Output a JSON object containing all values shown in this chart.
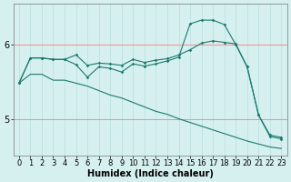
{
  "xlabel": "Humidex (Indice chaleur)",
  "bg_color": "#d6f0f0",
  "line_color": "#1a7a6e",
  "red_grid_color": "#ff8888",
  "teal_grid_color": "#b8dede",
  "x_ticks": [
    0,
    1,
    2,
    3,
    4,
    5,
    6,
    7,
    8,
    9,
    10,
    11,
    12,
    13,
    14,
    15,
    16,
    17,
    18,
    19,
    20,
    21,
    22,
    23
  ],
  "series1": [
    5.48,
    5.82,
    5.82,
    5.8,
    5.8,
    5.86,
    5.72,
    5.75,
    5.74,
    5.72,
    5.8,
    5.76,
    5.79,
    5.81,
    5.86,
    5.93,
    6.02,
    6.05,
    6.03,
    6.01,
    5.7,
    5.05,
    4.78,
    4.75
  ],
  "series2": [
    5.48,
    5.82,
    5.82,
    5.8,
    5.8,
    5.73,
    5.56,
    5.7,
    5.68,
    5.63,
    5.74,
    5.71,
    5.74,
    5.78,
    5.83,
    6.28,
    6.33,
    6.33,
    6.27,
    6.0,
    5.7,
    5.05,
    4.76,
    4.73
  ],
  "series3": [
    5.48,
    5.6,
    5.6,
    5.52,
    5.52,
    5.48,
    5.44,
    5.38,
    5.32,
    5.28,
    5.22,
    5.16,
    5.1,
    5.06,
    5.0,
    4.95,
    4.9,
    4.85,
    4.8,
    4.75,
    4.7,
    4.66,
    4.62,
    4.6
  ],
  "ylim": [
    4.5,
    6.55
  ],
  "yticks": [
    5.0,
    6.0
  ],
  "ytick_labels": [
    "5",
    "6"
  ],
  "font_size": 7,
  "tick_font_size": 6
}
